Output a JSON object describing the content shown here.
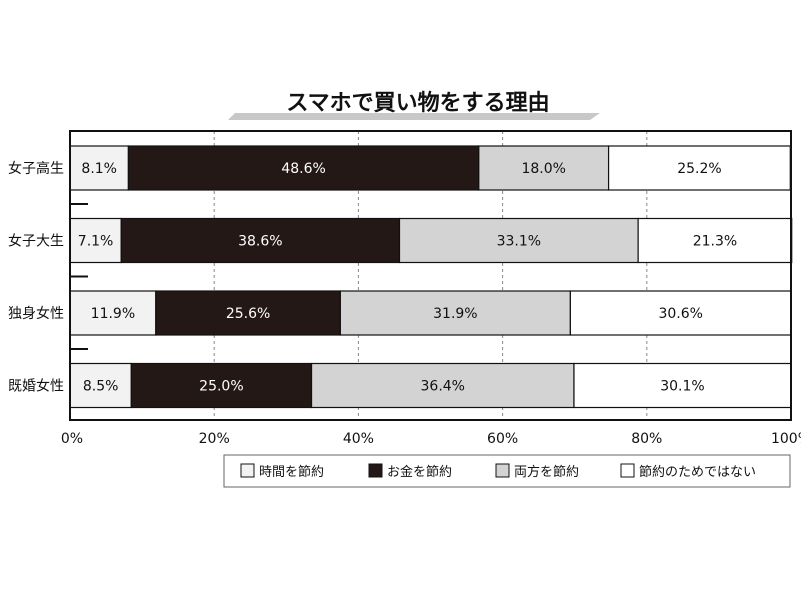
{
  "chart_data": {
    "type": "bar",
    "orientation": "horizontal",
    "stacked": "percent",
    "title": "スマホで買い物をする理由",
    "categories": [
      "女子高生",
      "女子大生",
      "独身女性",
      "既婚女性"
    ],
    "series": [
      {
        "name": "時間を節約",
        "values": [
          8.1,
          7.1,
          11.9,
          8.5
        ],
        "labels": [
          "8.1%",
          "7.1%",
          "11.9%",
          "8.5%"
        ],
        "color": "#f2f2f2",
        "text_color": "#111111"
      },
      {
        "name": "お金を節約",
        "values": [
          48.6,
          38.6,
          25.6,
          25.0
        ],
        "labels": [
          "48.6%",
          "38.6%",
          "25.6%",
          "25.0%"
        ],
        "color": "#231815",
        "text_color": "#ffffff"
      },
      {
        "name": "両方を節約",
        "values": [
          18.0,
          33.1,
          31.9,
          36.4
        ],
        "labels": [
          "18.0%",
          "33.1%",
          "31.9%",
          "36.4%"
        ],
        "color": "#d3d3d3",
        "text_color": "#111111"
      },
      {
        "name": "節約のためではない",
        "values": [
          25.2,
          21.3,
          30.6,
          30.1
        ],
        "labels": [
          "25.2%",
          "21.3%",
          "30.6%",
          "30.1%"
        ],
        "color": "#ffffff",
        "text_color": "#111111"
      }
    ],
    "x_ticks": [
      "0%",
      "20%",
      "40%",
      "60%",
      "80%",
      "100%"
    ],
    "xlim": [
      0,
      100
    ],
    "grid": "vertical-dashed",
    "legend": "bottom-right"
  }
}
